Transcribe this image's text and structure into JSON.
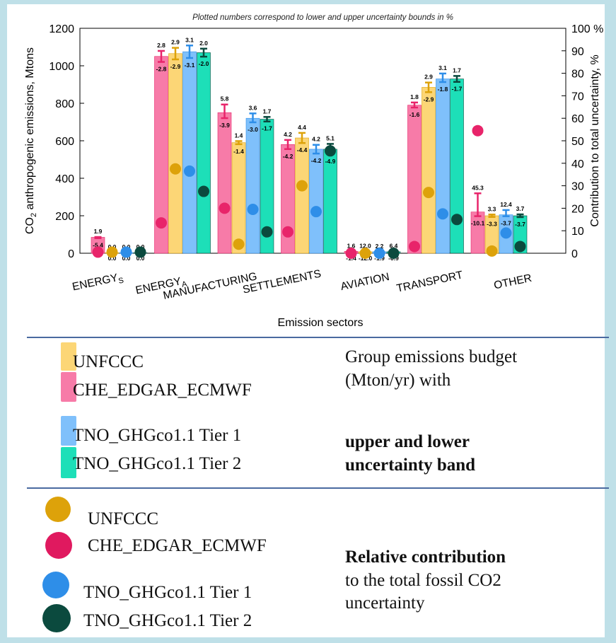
{
  "chart_data": {
    "type": "bar",
    "title": "Plotted numbers correspond to lower and upper uncertainty bounds in %",
    "xlabel": "Emission sectors",
    "ylabel": "CO2 anthropogenic emissions, Mtons",
    "y2label": "Contribution to total uncertainty, %",
    "ylim": [
      0,
      1200
    ],
    "y2lim": [
      0,
      100
    ],
    "yticks": [
      "0",
      "200",
      "400",
      "600",
      "800",
      "1000",
      "1200"
    ],
    "y2ticks": [
      "0",
      "10",
      "20",
      "30",
      "40",
      "50",
      "60",
      "70",
      "80",
      "90",
      "100 %"
    ],
    "categories": [
      "ENERGYS",
      "ENERGYA",
      "MANUFACTURING",
      "SETTLEMENTS",
      "AVIATION",
      "TRANSPORT",
      "OTHER"
    ],
    "series": [
      {
        "name": "CHE_EDGAR_ECMWF",
        "color": "#e8246a",
        "bar_color": "#f77ba8",
        "values": [
          85,
          1050,
          750,
          580,
          10,
          790,
          220
        ],
        "upper": [
          "1.9",
          "2.8",
          "5.8",
          "4.2",
          "1.6",
          "1.8",
          "45.3"
        ],
        "lower": [
          "-5.4",
          "-2.8",
          "-3.9",
          "-4.2",
          "-1.4",
          "-1.6",
          "-10.1"
        ],
        "contribution": [
          0.5,
          13.5,
          20,
          9.5,
          0,
          3,
          54.5
        ]
      },
      {
        "name": "UNFCCC",
        "color": "#dda20a",
        "bar_color": "#fcd676",
        "values": [
          3,
          1065,
          590,
          615,
          8,
          885,
          200
        ],
        "upper": [
          "0.0",
          "2.9",
          "1.4",
          "4.4",
          "12.0",
          "2.9",
          "3.3"
        ],
        "lower": [
          "0.0",
          "-2.9",
          "-1.4",
          "-4.4",
          "-12.0",
          "-2.9",
          "-3.3"
        ],
        "contribution": [
          0.5,
          37.5,
          4,
          30,
          0,
          27,
          1
        ]
      },
      {
        "name": "TNO_GHGco1.1 Tier 1",
        "color": "#2e8ee8",
        "bar_color": "#7fc0fb",
        "values": [
          3,
          1075,
          720,
          555,
          8,
          930,
          205
        ],
        "upper": [
          "0.0",
          "3.1",
          "3.6",
          "4.2",
          "2.2",
          "3.1",
          "12.4"
        ],
        "lower": [
          "0.0",
          "-3.1",
          "-3.0",
          "-4.2",
          "-1.9",
          "-1.8",
          "-3.7"
        ],
        "contribution": [
          0.5,
          36.5,
          19.5,
          18.5,
          0,
          17.5,
          9
        ]
      },
      {
        "name": "TNO_GHGco1.1 Tier 2",
        "color": "#0b4a3e",
        "bar_color": "#1ddfb8",
        "values": [
          3,
          1070,
          715,
          555,
          8,
          930,
          200
        ],
        "upper": [
          "0.0",
          "2.0",
          "1.7",
          "5.1",
          "6.4",
          "1.7",
          "3.7"
        ],
        "lower": [
          "0.0",
          "-2.0",
          "-1.7",
          "-4.9",
          "-0.9",
          "-1.7",
          "-3.7"
        ],
        "contribution": [
          0.5,
          27.5,
          9.5,
          45.5,
          0,
          15,
          3
        ]
      }
    ],
    "bar_order": [
      0,
      1,
      2,
      3
    ],
    "grid": false,
    "legend": "below chart"
  },
  "legend": {
    "bars": [
      "UNFCCC",
      "CHE_EDGAR_ECMWF",
      "TNO_GHGco1.1 Tier 1",
      "TNO_GHGco1.1 Tier 2"
    ],
    "bar_colors": [
      "#fcd676",
      "#f77ba8",
      "#7fc0fb",
      "#1ddfb8"
    ],
    "bars_note_line1": "Group emissions budget",
    "bars_note_line2": "(Mton/yr) with",
    "bars_note_bold1": "upper and lower",
    "bars_note_bold2": "uncertainty band",
    "dots": [
      "UNFCCC",
      "CHE_EDGAR_ECMWF",
      "TNO_GHGco1.1 Tier 1",
      "TNO_GHGco1.1 Tier 2"
    ],
    "dot_colors": [
      "#dda20a",
      "#e0195f",
      "#2e8ee8",
      "#0b4a3e"
    ],
    "dots_note_bold": "Relative contribution",
    "dots_note_line1": "to the total fossil CO2",
    "dots_note_line2": "uncertainty"
  }
}
